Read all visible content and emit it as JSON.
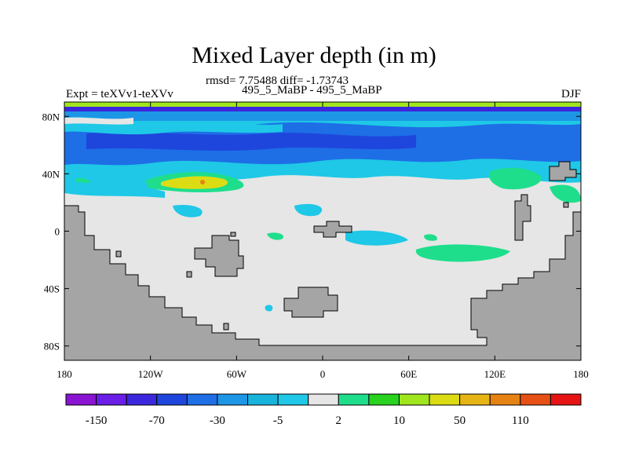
{
  "header": {
    "title": "Mixed Layer depth (in m)",
    "stats": "rmsd= 7.75488 diff= -1.73743",
    "experiments": "495_5_MaBP - 495_5_MaBP",
    "left_label": "Expt = teXVv1-teXVv",
    "right_label": "DJF"
  },
  "axes": {
    "x_ticks": [
      "180",
      "120W",
      "60W",
      "0",
      "60E",
      "120E",
      "180"
    ],
    "y_ticks": [
      "80N",
      "40N",
      "0",
      "40S",
      "80S"
    ]
  },
  "colorbar": {
    "colors": [
      "#8a14d2",
      "#6a1ee6",
      "#3c28dc",
      "#1e46dc",
      "#1e6ee6",
      "#1e96e6",
      "#19b4dc",
      "#1ec8e6",
      "#e6e6e6",
      "#1ede8c",
      "#28d21e",
      "#a0e61e",
      "#dcdc14",
      "#e6b414",
      "#e68214",
      "#e65014",
      "#e61414"
    ],
    "labels": [
      "-150",
      "-70",
      "-30",
      "-5",
      "2",
      "10",
      "50",
      "110"
    ]
  },
  "colors": {
    "land": "#a5a5a5",
    "ocean_neutral": "#e6e6e6"
  }
}
